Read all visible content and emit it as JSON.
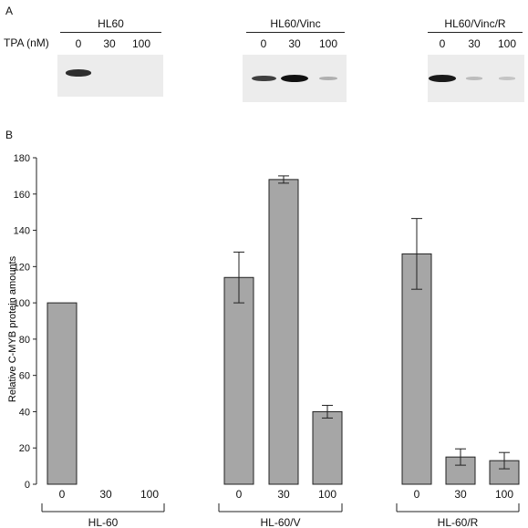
{
  "panel_a": {
    "letter": "A",
    "tpa_label": "TPA (nM)",
    "blots": [
      {
        "title": "HL60",
        "lanes": [
          "0",
          "30",
          "100"
        ],
        "band_intensity": [
          0.85,
          0.0,
          0.0
        ]
      },
      {
        "title": "HL60/Vinc",
        "lanes": [
          "0",
          "30",
          "100"
        ],
        "band_intensity": [
          0.75,
          1.0,
          0.15
        ]
      },
      {
        "title": "HL60/Vinc/R",
        "lanes": [
          "0",
          "30",
          "100"
        ],
        "band_intensity": [
          0.95,
          0.08,
          0.03
        ]
      }
    ]
  },
  "panel_b": {
    "letter": "B"
  },
  "chart_data": {
    "type": "bar",
    "ylabel": "Relative C-MYB protein amounts",
    "ylim": [
      0,
      180
    ],
    "yticks": [
      0,
      20,
      40,
      60,
      80,
      100,
      120,
      140,
      160,
      180
    ],
    "bar_color": "#a6a6a6",
    "groups": [
      {
        "name": "HL-60",
        "categories": [
          "0",
          "30",
          "100"
        ],
        "values": [
          100,
          0,
          0
        ],
        "errors": [
          0,
          0,
          0
        ]
      },
      {
        "name": "HL-60/V",
        "categories": [
          "0",
          "30",
          "100"
        ],
        "values": [
          114,
          168,
          40
        ],
        "errors": [
          14,
          2,
          3.5
        ]
      },
      {
        "name": "HL-60/R",
        "categories": [
          "0",
          "30",
          "100"
        ],
        "values": [
          127,
          15,
          13
        ],
        "errors": [
          19.5,
          4.5,
          4.5
        ]
      }
    ]
  }
}
